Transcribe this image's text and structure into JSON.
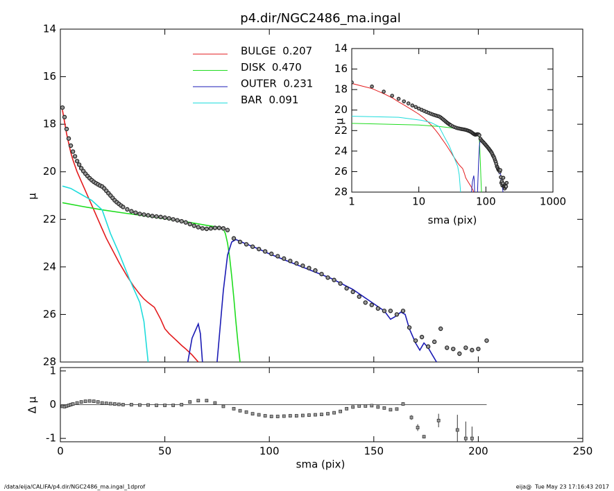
{
  "chart_data": [
    {
      "type": "line",
      "title": "p4.dir/NGC2486_ma.ingal",
      "ylabel": "μ",
      "xlim": [
        0,
        250
      ],
      "ylim": [
        28,
        14
      ],
      "xticks": [
        0,
        50,
        100,
        150,
        200,
        250
      ],
      "yticks": [
        14,
        16,
        18,
        20,
        22,
        24,
        26,
        28
      ],
      "observed": {
        "color": "#9a9a9a",
        "x": [
          1,
          2,
          3,
          4,
          5,
          6,
          7,
          8,
          9,
          10,
          11,
          12,
          13,
          14,
          15,
          16,
          17,
          18,
          19,
          20,
          21,
          22,
          23,
          24,
          25,
          26,
          27,
          28,
          29,
          30,
          32,
          34,
          36,
          38,
          40,
          42,
          44,
          46,
          48,
          50,
          52,
          54,
          56,
          58,
          60,
          62,
          64,
          66,
          68,
          70,
          72,
          74,
          76,
          78,
          80,
          83,
          86,
          89,
          92,
          95,
          98,
          101,
          104,
          107,
          110,
          113,
          116,
          119,
          122,
          125,
          128,
          131,
          134,
          137,
          140,
          143,
          146,
          149,
          152,
          155,
          158,
          161,
          164,
          167,
          170,
          173,
          176,
          179,
          182,
          185,
          188,
          191,
          194,
          197,
          200,
          204
        ],
        "values": [
          17.3,
          17.7,
          18.2,
          18.6,
          18.9,
          19.15,
          19.35,
          19.55,
          19.7,
          19.85,
          19.97,
          20.08,
          20.18,
          20.27,
          20.35,
          20.42,
          20.48,
          20.53,
          20.58,
          20.62,
          20.7,
          20.8,
          20.9,
          21.0,
          21.1,
          21.2,
          21.28,
          21.35,
          21.42,
          21.48,
          21.58,
          21.66,
          21.72,
          21.77,
          21.8,
          21.83,
          21.86,
          21.88,
          21.9,
          21.93,
          21.96,
          22.0,
          22.04,
          22.08,
          22.13,
          22.2,
          22.27,
          22.33,
          22.38,
          22.4,
          22.38,
          22.36,
          22.36,
          22.38,
          22.45,
          22.8,
          22.95,
          23.05,
          23.15,
          23.25,
          23.35,
          23.45,
          23.55,
          23.65,
          23.75,
          23.85,
          23.95,
          24.05,
          24.15,
          24.3,
          24.45,
          24.55,
          24.7,
          24.9,
          25.05,
          25.25,
          25.5,
          25.6,
          25.75,
          25.85,
          25.85,
          26.0,
          25.85,
          26.55,
          27.1,
          26.95,
          27.35,
          27.15,
          26.6,
          27.4,
          27.45,
          27.65,
          27.4,
          27.5,
          27.45,
          27.1
        ]
      },
      "series": [
        {
          "name": "BULGE  0.207",
          "color": "#e31a1c",
          "x": [
            1,
            2,
            3,
            4,
            5,
            6,
            8,
            10,
            12,
            15,
            18,
            20,
            22,
            25,
            28,
            30,
            32,
            35,
            38,
            40,
            42,
            45,
            48,
            50,
            52,
            55,
            58,
            60,
            63,
            66
          ],
          "values": [
            17.4,
            17.9,
            18.4,
            18.8,
            19.2,
            19.5,
            20.0,
            20.4,
            20.8,
            21.4,
            22.0,
            22.4,
            22.8,
            23.3,
            23.8,
            24.1,
            24.4,
            24.8,
            25.15,
            25.35,
            25.5,
            25.7,
            26.2,
            26.6,
            26.8,
            27.05,
            27.3,
            27.45,
            27.7,
            28.0
          ]
        },
        {
          "name": "DISK  0.470",
          "color": "#1edc1e",
          "x": [
            1,
            10,
            20,
            30,
            40,
            50,
            60,
            70,
            75,
            78,
            79,
            80,
            81,
            82,
            83,
            84,
            85,
            86
          ],
          "values": [
            21.3,
            21.45,
            21.6,
            21.73,
            21.85,
            21.97,
            22.1,
            22.25,
            22.32,
            22.4,
            22.6,
            23.0,
            23.6,
            24.4,
            25.3,
            26.3,
            27.2,
            28.0
          ]
        },
        {
          "name": "OUTER  0.231",
          "color": "#1a1ab4",
          "x": [
            61,
            63,
            65,
            66,
            67,
            68,
            71,
            75,
            76,
            78,
            80,
            82,
            84,
            88,
            95,
            100,
            110,
            120,
            130,
            140,
            145,
            150,
            155,
            158,
            160,
            163,
            165,
            167,
            170,
            172,
            174,
            176,
            178,
            180
          ],
          "values": [
            28.0,
            27.0,
            26.6,
            26.4,
            26.8,
            28.0,
            null,
            28.0,
            27.0,
            25.0,
            23.5,
            22.95,
            22.85,
            23.0,
            23.25,
            23.45,
            23.8,
            24.15,
            24.5,
            24.95,
            25.25,
            25.55,
            25.85,
            26.2,
            26.1,
            25.9,
            26.0,
            26.6,
            27.2,
            27.5,
            27.2,
            27.4,
            27.7,
            28.0
          ]
        },
        {
          "name": "BAR  0.091",
          "color": "#1edcdc",
          "x": [
            1,
            5,
            11,
            15,
            20,
            24,
            28,
            33,
            38,
            40,
            42
          ],
          "values": [
            20.6,
            20.7,
            21.0,
            21.2,
            21.6,
            22.6,
            23.4,
            24.5,
            25.5,
            26.3,
            28.0
          ]
        }
      ]
    },
    {
      "type": "errorbar",
      "ylabel": "Δ μ",
      "xlabel": "sma (pix)",
      "color": "#9a9a9a",
      "xlim": [
        0,
        250
      ],
      "ylim": [
        -1.1,
        1.1
      ],
      "xticks": [
        0,
        50,
        100,
        150,
        200,
        250
      ],
      "yticks": [
        -1,
        0,
        1
      ],
      "x": [
        1,
        2,
        3,
        4,
        5,
        6,
        8,
        10,
        12,
        14,
        16,
        18,
        20,
        22,
        24,
        26,
        28,
        30,
        34,
        38,
        42,
        46,
        50,
        54,
        58,
        62,
        66,
        70,
        74,
        78,
        83,
        86,
        89,
        92,
        95,
        98,
        101,
        104,
        107,
        110,
        113,
        116,
        119,
        122,
        125,
        128,
        131,
        134,
        137,
        140,
        143,
        146,
        149,
        152,
        155,
        158,
        161,
        164,
        168,
        171,
        174,
        181,
        190,
        194,
        197
      ],
      "values": [
        -0.05,
        -0.06,
        -0.04,
        -0.02,
        0,
        0.02,
        0.05,
        0.08,
        0.1,
        0.11,
        0.1,
        0.08,
        0.05,
        0.04,
        0.03,
        0.02,
        0.01,
        0,
        0,
        -0.01,
        -0.01,
        -0.02,
        -0.02,
        -0.02,
        0,
        0.08,
        0.12,
        0.12,
        0.05,
        -0.05,
        -0.12,
        -0.18,
        -0.22,
        -0.27,
        -0.3,
        -0.33,
        -0.35,
        -0.35,
        -0.34,
        -0.33,
        -0.33,
        -0.32,
        -0.31,
        -0.3,
        -0.29,
        -0.27,
        -0.24,
        -0.2,
        -0.12,
        -0.07,
        -0.04,
        -0.04,
        -0.03,
        -0.07,
        -0.1,
        -0.15,
        -0.13,
        0.02,
        -0.38,
        -0.68,
        -0.95,
        -0.47,
        -0.75,
        -1.0,
        -1.0
      ],
      "errors": [
        0.02,
        0.02,
        0.02,
        0.02,
        0.02,
        0.02,
        0.02,
        0.02,
        0.02,
        0.02,
        0.02,
        0.02,
        0.02,
        0.02,
        0.02,
        0.02,
        0.02,
        0.02,
        0.02,
        0.02,
        0.02,
        0.02,
        0.02,
        0.02,
        0.02,
        0.02,
        0.02,
        0.02,
        0.02,
        0.02,
        0.02,
        0.02,
        0.02,
        0.02,
        0.02,
        0.02,
        0.02,
        0.02,
        0.02,
        0.02,
        0.02,
        0.02,
        0.02,
        0.02,
        0.02,
        0.02,
        0.02,
        0.02,
        0.02,
        0.02,
        0.02,
        0.02,
        0.02,
        0.02,
        0.02,
        0.02,
        0.02,
        0.05,
        0.07,
        0.1,
        0.05,
        0.2,
        0.45,
        0.5,
        0.35
      ]
    },
    {
      "type": "line",
      "log_x": true,
      "xlabel": "sma (pix)",
      "ylabel": "μ",
      "xlim": [
        1,
        1000
      ],
      "ylim": [
        28,
        14
      ],
      "xticks": [
        1,
        10,
        100,
        1000
      ],
      "yticks": [
        14,
        16,
        18,
        20,
        22,
        24,
        26,
        28
      ]
    }
  ],
  "footer": {
    "left": "/data/eija/CALIFA/p4.dir/NGC2486_ma.ingal_1dprof",
    "right": "eija@  Tue May 23 17:16:43 2017"
  }
}
